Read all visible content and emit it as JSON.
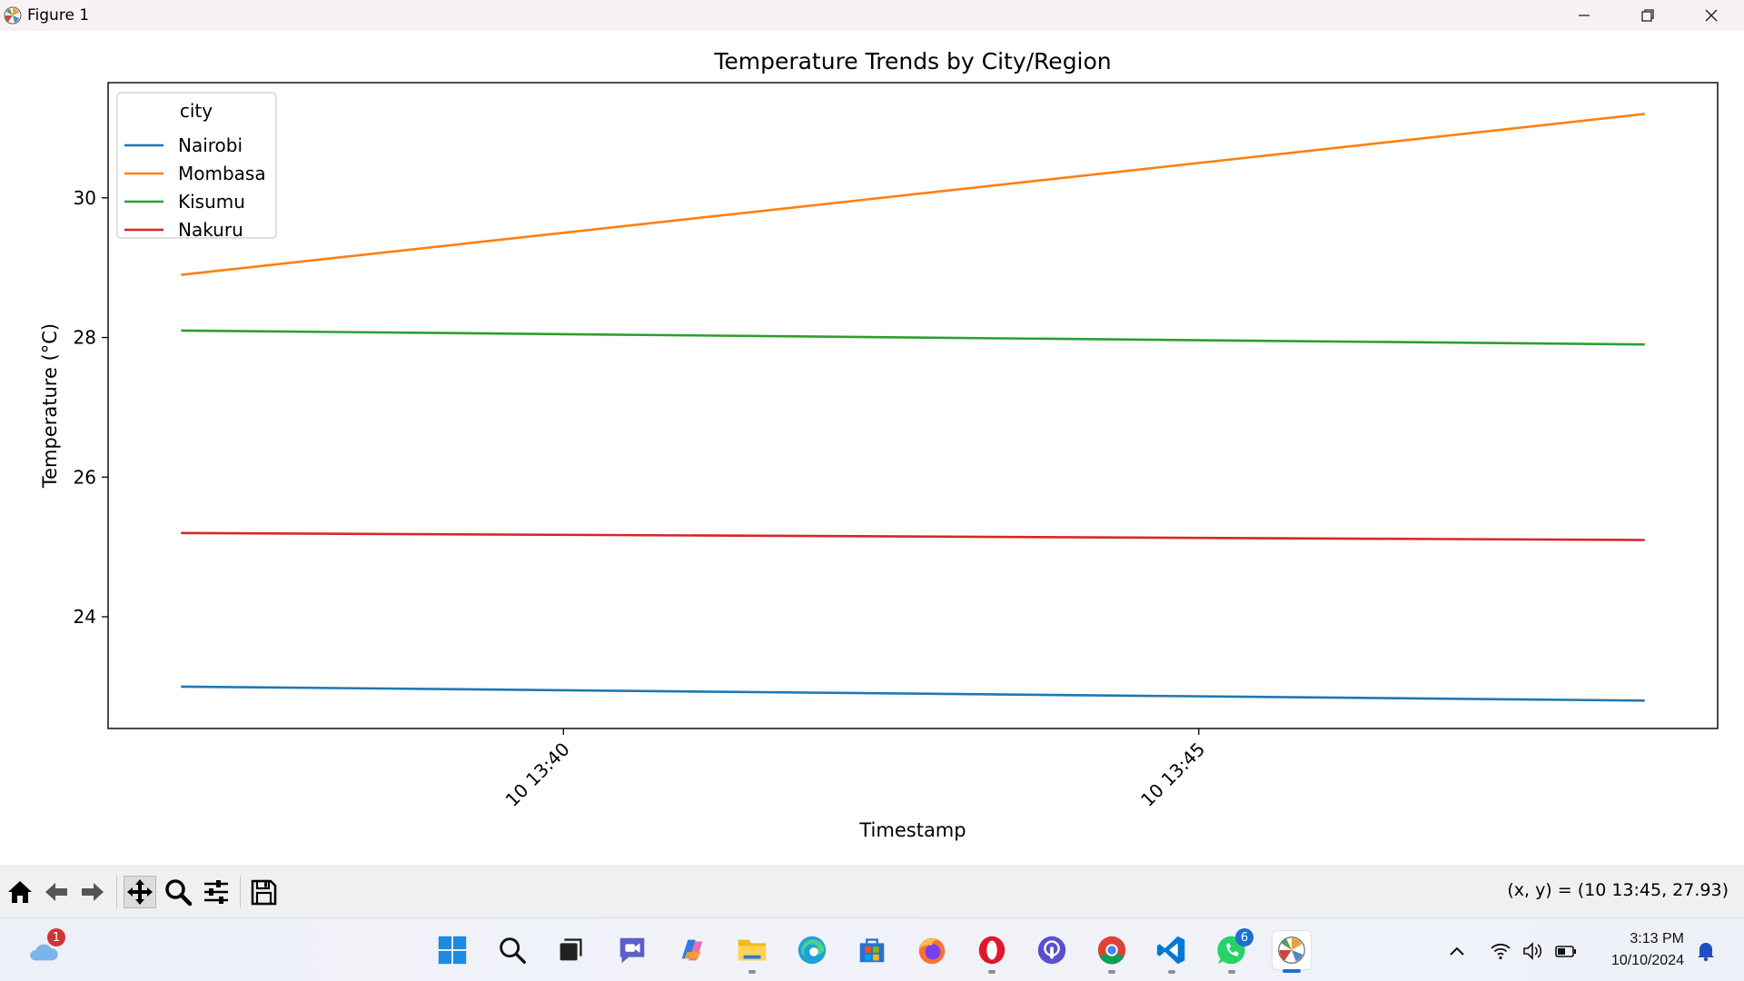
{
  "window": {
    "title": "Figure 1"
  },
  "toolbar": {
    "buttons": [
      "home-icon",
      "back-arrow-icon",
      "forward-arrow-icon",
      "pan-icon",
      "zoom-icon",
      "configure-subplots-icon",
      "save-icon"
    ],
    "active": "pan-icon",
    "coords": "(x, y) = (10 13:45, 27.93)"
  },
  "chart_data": {
    "type": "line",
    "title": "Temperature Trends by City/Region",
    "xlabel": "Timestamp",
    "ylabel": "Temperature (°C)",
    "x": [
      "2024-10-10 13:37:00",
      "2024-10-10 13:48:30"
    ],
    "xlim": [
      "2024-10-10 13:36:25",
      "2024-10-10 13:49:05"
    ],
    "ylim": [
      22.4,
      31.65
    ],
    "xticks": [
      {
        "time": "2024-10-10 13:40:00",
        "label": "10 13:40"
      },
      {
        "time": "2024-10-10 13:45:00",
        "label": "10 13:45"
      }
    ],
    "yticks": [
      24,
      26,
      28,
      30
    ],
    "grid": false,
    "legend": {
      "title": "city",
      "placement": "top-left"
    },
    "series": [
      {
        "name": "Nairobi",
        "color": "#1f77b4",
        "values": [
          23.0,
          22.8
        ]
      },
      {
        "name": "Mombasa",
        "color": "#ff7f0e",
        "values": [
          28.9,
          31.2
        ]
      },
      {
        "name": "Kisumu",
        "color": "#2ca02c",
        "values": [
          28.1,
          27.9
        ]
      },
      {
        "name": "Nakuru",
        "color": "#d62728",
        "values": [
          25.2,
          25.1
        ]
      }
    ]
  },
  "taskbar": {
    "weather_badge": "1",
    "whatsapp_badge": "6",
    "apps": [
      "windows-start-icon",
      "search-icon",
      "task-view-icon",
      "video-chat-icon",
      "copilot-icon",
      "file-explorer-icon",
      "edge-icon",
      "store-icon",
      "firefox-icon",
      "opera-icon",
      "podcast-icon",
      "chrome-icon",
      "vscode-icon",
      "whatsapp-icon",
      "matplotlib-icon"
    ],
    "clock_time": "3:13 PM",
    "clock_date": "10/10/2024"
  }
}
